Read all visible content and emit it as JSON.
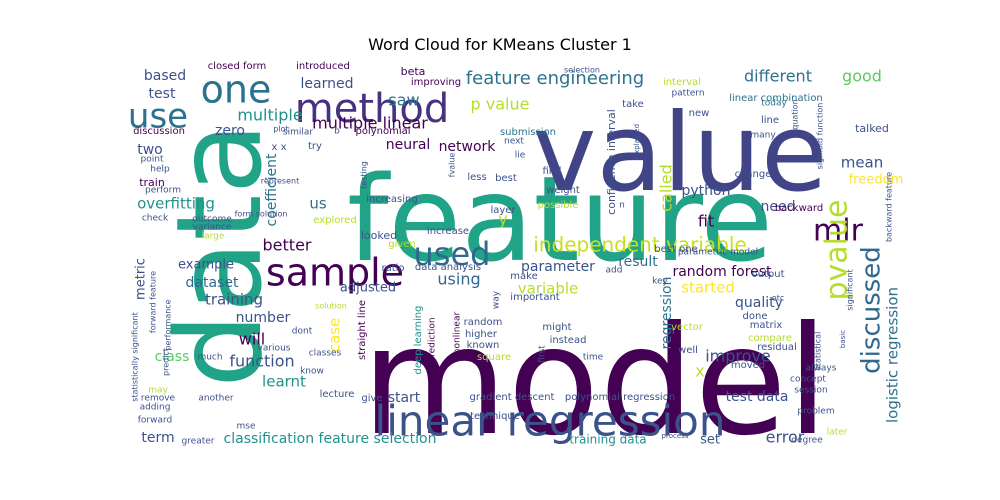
{
  "chart_data": {
    "type": "wordcloud",
    "title": "Word Cloud for KMeans Cluster 1",
    "words": [
      {
        "text": "model",
        "weight": 100,
        "color": "#440154"
      },
      {
        "text": "feature",
        "weight": 95,
        "color": "#20a386"
      },
      {
        "text": "value",
        "weight": 92,
        "color": "#414487"
      },
      {
        "text": "data",
        "weight": 90,
        "color": "#20a386"
      },
      {
        "text": "linear regression",
        "weight": 40,
        "color": "#3b528b"
      },
      {
        "text": "method",
        "weight": 38,
        "color": "#46327e"
      },
      {
        "text": "sample",
        "weight": 34,
        "color": "#440154"
      },
      {
        "text": "one",
        "weight": 32,
        "color": "#2c728e"
      },
      {
        "text": "use",
        "weight": 30,
        "color": "#2c728e"
      },
      {
        "text": "used",
        "weight": 28,
        "color": "#31688e"
      },
      {
        "text": "mlr",
        "weight": 28,
        "color": "#440154"
      },
      {
        "text": "pvalue",
        "weight": 27,
        "color": "#b5de2b"
      },
      {
        "text": "discussed",
        "weight": 24,
        "color": "#31688e"
      },
      {
        "text": "independent variable",
        "weight": 20,
        "color": "#c8e020"
      },
      {
        "text": "feature engineering",
        "weight": 18,
        "color": "#2c728e"
      },
      {
        "text": "logistic regression",
        "weight": 16,
        "color": "#2c728e"
      },
      {
        "text": "multiple linear",
        "weight": 15,
        "color": "#440154"
      },
      {
        "text": "multiple",
        "weight": 15,
        "color": "#21918c"
      },
      {
        "text": "learned",
        "weight": 14,
        "color": "#3b528b"
      },
      {
        "text": "network",
        "weight": 14,
        "color": "#440154"
      },
      {
        "text": "neural",
        "weight": 14,
        "color": "#440154"
      },
      {
        "text": "p value",
        "weight": 14,
        "color": "#b5de2b"
      },
      {
        "text": "different",
        "weight": 14,
        "color": "#2c728e"
      },
      {
        "text": "good",
        "weight": 14,
        "color": "#5ec962"
      },
      {
        "text": "based",
        "weight": 13,
        "color": "#3b528b"
      },
      {
        "text": "test",
        "weight": 13,
        "color": "#3b528b"
      },
      {
        "text": "saw",
        "weight": 13,
        "color": "#2c728e"
      },
      {
        "text": "two",
        "weight": 13,
        "color": "#3b528b"
      },
      {
        "text": "zero",
        "weight": 12,
        "color": "#3b528b"
      },
      {
        "text": "coefficient",
        "weight": 13,
        "color": "#2c728e"
      },
      {
        "text": "overfitting",
        "weight": 13,
        "color": "#21918c"
      },
      {
        "text": "better",
        "weight": 14,
        "color": "#440154"
      },
      {
        "text": "us",
        "weight": 13,
        "color": "#2c728e"
      },
      {
        "text": "called",
        "weight": 14,
        "color": "#b5de2b"
      },
      {
        "text": "python",
        "weight": 13,
        "color": "#3b528b"
      },
      {
        "text": "fit",
        "weight": 14,
        "color": "#440154"
      },
      {
        "text": "need",
        "weight": 13,
        "color": "#3b528b"
      },
      {
        "text": "mean",
        "weight": 13,
        "color": "#3b528b"
      },
      {
        "text": "freedom",
        "weight": 12,
        "color": "#fde725"
      },
      {
        "text": "regression",
        "weight": 14,
        "color": "#2c728e"
      },
      {
        "text": "result",
        "weight": 13,
        "color": "#2c728e"
      },
      {
        "text": "parameter",
        "weight": 13,
        "color": "#3b528b"
      },
      {
        "text": "random forest",
        "weight": 13,
        "color": "#440154"
      },
      {
        "text": "started",
        "weight": 13,
        "color": "#fde725"
      },
      {
        "text": "variable",
        "weight": 14,
        "color": "#b5de2b"
      },
      {
        "text": "using",
        "weight": 14,
        "color": "#31688e"
      },
      {
        "text": "dataset",
        "weight": 13,
        "color": "#31688e"
      },
      {
        "text": "example",
        "weight": 12,
        "color": "#3b528b"
      },
      {
        "text": "metric",
        "weight": 12,
        "color": "#3b528b"
      },
      {
        "text": "training",
        "weight": 14,
        "color": "#3b528b"
      },
      {
        "text": "number",
        "weight": 13,
        "color": "#3b528b"
      },
      {
        "text": "will",
        "weight": 14,
        "color": "#440154"
      },
      {
        "text": "case",
        "weight": 13,
        "color": "#fde725"
      },
      {
        "text": "adjusted",
        "weight": 12,
        "color": "#3b528b"
      },
      {
        "text": "quality",
        "weight": 13,
        "color": "#3b528b"
      },
      {
        "text": "improve",
        "weight": 14,
        "color": "#3b528b"
      },
      {
        "text": "class",
        "weight": 13,
        "color": "#5ec962"
      },
      {
        "text": "function",
        "weight": 14,
        "color": "#3b528b"
      },
      {
        "text": "learnt",
        "weight": 13,
        "color": "#21918c"
      },
      {
        "text": "start",
        "weight": 12,
        "color": "#3b528b"
      },
      {
        "text": "test data",
        "weight": 13,
        "color": "#3b528b"
      },
      {
        "text": "error",
        "weight": 14,
        "color": "#3b528b"
      },
      {
        "text": "set",
        "weight": 12,
        "color": "#3b528b"
      },
      {
        "text": "term",
        "weight": 13,
        "color": "#3b528b"
      },
      {
        "text": "classification feature selection",
        "weight": 13,
        "color": "#21918c"
      },
      {
        "text": "training data",
        "weight": 11,
        "color": "#21918c"
      },
      {
        "text": "x",
        "weight": 14,
        "color": "#b5de2b"
      },
      {
        "text": "y",
        "weight": 14,
        "color": "#b5de2b"
      },
      {
        "text": "train",
        "weight": 10,
        "color": "#440154"
      },
      {
        "text": "discussion",
        "weight": 8,
        "color": "#440154"
      },
      {
        "text": "introduced",
        "weight": 8,
        "color": "#440154"
      },
      {
        "text": "closed form",
        "weight": 8,
        "color": "#440154"
      },
      {
        "text": "improving",
        "weight": 8,
        "color": "#440154"
      },
      {
        "text": "beta",
        "weight": 9,
        "color": "#440154"
      },
      {
        "text": "interval",
        "weight": 8,
        "color": "#b5de2b"
      },
      {
        "text": "take",
        "weight": 8,
        "color": "#3b528b"
      },
      {
        "text": "pattern",
        "weight": 7,
        "color": "#3b528b"
      },
      {
        "text": "linear combination",
        "weight": 8,
        "color": "#2c728e"
      },
      {
        "text": "today",
        "weight": 8,
        "color": "#2c728e"
      },
      {
        "text": "new",
        "weight": 8,
        "color": "#3b528b"
      },
      {
        "text": "line",
        "weight": 8,
        "color": "#3b528b"
      },
      {
        "text": "many",
        "weight": 8,
        "color": "#3b528b"
      },
      {
        "text": "talked",
        "weight": 9,
        "color": "#3b528b"
      },
      {
        "text": "confidence interval",
        "weight": 9,
        "color": "#3b528b"
      },
      {
        "text": "submission",
        "weight": 8,
        "color": "#2c728e"
      },
      {
        "text": "polynomial",
        "weight": 8,
        "color": "#440154"
      },
      {
        "text": "similar",
        "weight": 8,
        "color": "#3b528b"
      },
      {
        "text": "plot",
        "weight": 7,
        "color": "#3b528b"
      },
      {
        "text": "point",
        "weight": 8,
        "color": "#3b528b"
      },
      {
        "text": "help",
        "weight": 8,
        "color": "#3b528b"
      },
      {
        "text": "perform",
        "weight": 8,
        "color": "#3b528b"
      },
      {
        "text": "check",
        "weight": 8,
        "color": "#3b528b"
      },
      {
        "text": "outcome",
        "weight": 8,
        "color": "#3b528b"
      },
      {
        "text": "variance",
        "weight": 8,
        "color": "#3b528b"
      },
      {
        "text": "large",
        "weight": 8,
        "color": "#b5de2b"
      },
      {
        "text": "testing",
        "weight": 7,
        "color": "#3b528b"
      },
      {
        "text": "fvalue",
        "weight": 7,
        "color": "#3b528b"
      },
      {
        "text": "less",
        "weight": 8,
        "color": "#3b528b"
      },
      {
        "text": "best",
        "weight": 8,
        "color": "#3b528b"
      },
      {
        "text": "find",
        "weight": 8,
        "color": "#3b528b"
      },
      {
        "text": "weight",
        "weight": 8,
        "color": "#3b528b"
      },
      {
        "text": "possible",
        "weight": 8,
        "color": "#b5de2b"
      },
      {
        "text": "change",
        "weight": 8,
        "color": "#3b528b"
      },
      {
        "text": "backward",
        "weight": 8,
        "color": "#440154"
      },
      {
        "text": "increasing",
        "weight": 8,
        "color": "#3b528b"
      },
      {
        "text": "layer",
        "weight": 8,
        "color": "#3b528b"
      },
      {
        "text": "explored",
        "weight": 8,
        "color": "#b5de2b"
      },
      {
        "text": "looked",
        "weight": 9,
        "color": "#3b528b"
      },
      {
        "text": "increase",
        "weight": 8,
        "color": "#3b528b"
      },
      {
        "text": "given",
        "weight": 8,
        "color": "#b5de2b"
      },
      {
        "text": "best one",
        "weight": 8,
        "color": "#3b528b"
      },
      {
        "text": "parametric model",
        "weight": 7,
        "color": "#3b528b"
      },
      {
        "text": "output",
        "weight": 8,
        "color": "#3b528b"
      },
      {
        "text": "key",
        "weight": 7,
        "color": "#3b528b"
      },
      {
        "text": "make",
        "weight": 8,
        "color": "#3b528b"
      },
      {
        "text": "add",
        "weight": 7,
        "color": "#3b528b"
      },
      {
        "text": "important",
        "weight": 8,
        "color": "#3b528b"
      },
      {
        "text": "ratio",
        "weight": 8,
        "color": "#3b528b"
      },
      {
        "text": "data analysis",
        "weight": 8,
        "color": "#3b528b"
      },
      {
        "text": "random",
        "weight": 8,
        "color": "#3b528b"
      },
      {
        "text": "higher",
        "weight": 8,
        "color": "#3b528b"
      },
      {
        "text": "known",
        "weight": 8,
        "color": "#3b528b"
      },
      {
        "text": "square",
        "weight": 8,
        "color": "#b5de2b"
      },
      {
        "text": "nonlinear",
        "weight": 8,
        "color": "#440154"
      },
      {
        "text": "prediction",
        "weight": 8,
        "color": "#440154"
      },
      {
        "text": "deep learning",
        "weight": 8,
        "color": "#21918c"
      },
      {
        "text": "might",
        "weight": 8,
        "color": "#3b528b"
      },
      {
        "text": "instead",
        "weight": 8,
        "color": "#3b528b"
      },
      {
        "text": "time",
        "weight": 8,
        "color": "#3b528b"
      },
      {
        "text": "done",
        "weight": 8,
        "color": "#3b528b"
      },
      {
        "text": "matrix",
        "weight": 8,
        "color": "#3b528b"
      },
      {
        "text": "compare",
        "weight": 8,
        "color": "#b5de2b"
      },
      {
        "text": "residual",
        "weight": 8,
        "color": "#3b528b"
      },
      {
        "text": "vector",
        "weight": 8,
        "color": "#b5de2b"
      },
      {
        "text": "well",
        "weight": 8,
        "color": "#3b528b"
      },
      {
        "text": "moved",
        "weight": 8,
        "color": "#3b528b"
      },
      {
        "text": "always",
        "weight": 8,
        "color": "#3b528b"
      },
      {
        "text": "concept",
        "weight": 8,
        "color": "#3b528b"
      },
      {
        "text": "session",
        "weight": 8,
        "color": "#3b528b"
      },
      {
        "text": "problem",
        "weight": 8,
        "color": "#3b528b"
      },
      {
        "text": "degree",
        "weight": 8,
        "color": "#3b528b"
      },
      {
        "text": "later",
        "weight": 8,
        "color": "#b5de2b"
      },
      {
        "text": "gradient descent",
        "weight": 8,
        "color": "#3b528b"
      },
      {
        "text": "polynomial regression",
        "weight": 8,
        "color": "#3b528b"
      },
      {
        "text": "process",
        "weight": 6,
        "color": "#3b528b"
      },
      {
        "text": "technique",
        "weight": 8,
        "color": "#3b528b"
      },
      {
        "text": "lecture",
        "weight": 8,
        "color": "#3b528b"
      },
      {
        "text": "give",
        "weight": 8,
        "color": "#3b528b"
      },
      {
        "text": "know",
        "weight": 8,
        "color": "#3b528b"
      },
      {
        "text": "straight line",
        "weight": 8,
        "color": "#440154"
      },
      {
        "text": "classes",
        "weight": 8,
        "color": "#3b528b"
      },
      {
        "text": "dont",
        "weight": 8,
        "color": "#3b528b"
      },
      {
        "text": "various",
        "weight": 8,
        "color": "#3b528b"
      },
      {
        "text": "much",
        "weight": 8,
        "color": "#3b528b"
      },
      {
        "text": "may",
        "weight": 8,
        "color": "#b5de2b"
      },
      {
        "text": "adding",
        "weight": 8,
        "color": "#3b528b"
      },
      {
        "text": "remove",
        "weight": 8,
        "color": "#3b528b"
      },
      {
        "text": "forward",
        "weight": 8,
        "color": "#3b528b"
      },
      {
        "text": "another",
        "weight": 8,
        "color": "#3b528b"
      },
      {
        "text": "greater",
        "weight": 8,
        "color": "#3b528b"
      },
      {
        "text": "mse",
        "weight": 8,
        "color": "#3b528b"
      },
      {
        "text": "statistically significant",
        "weight": 7,
        "color": "#3b528b"
      },
      {
        "text": "forward feature",
        "weight": 7,
        "color": "#3b528b"
      },
      {
        "text": "performance",
        "weight": 7,
        "color": "#3b528b"
      },
      {
        "text": "predict",
        "weight": 7,
        "color": "#3b528b"
      },
      {
        "text": "sigmoid function",
        "weight": 7,
        "color": "#3b528b"
      },
      {
        "text": "backward feature",
        "weight": 7,
        "color": "#3b528b"
      },
      {
        "text": "significant",
        "weight": 7,
        "color": "#3b528b"
      },
      {
        "text": "statistical",
        "weight": 7,
        "color": "#3b528b"
      },
      {
        "text": "equation",
        "weight": 7,
        "color": "#3b528b"
      },
      {
        "text": "explained",
        "weight": 6,
        "color": "#3b528b"
      },
      {
        "text": "form solution",
        "weight": 7,
        "color": "#3b528b"
      },
      {
        "text": "represent",
        "weight": 7,
        "color": "#3b528b"
      },
      {
        "text": "solution",
        "weight": 7,
        "color": "#b5de2b"
      },
      {
        "text": "try",
        "weight": 8,
        "color": "#3b528b"
      },
      {
        "text": "selection",
        "weight": 7,
        "color": "#3b528b"
      },
      {
        "text": "next",
        "weight": 7,
        "color": "#3b528b"
      },
      {
        "text": "lie",
        "weight": 7,
        "color": "#3b528b"
      },
      {
        "text": "way",
        "weight": 7,
        "color": "#3b528b"
      },
      {
        "text": "first",
        "weight": 7,
        "color": "#3b528b"
      },
      {
        "text": "etc",
        "weight": 7,
        "color": "#3b528b"
      },
      {
        "text": "basic",
        "weight": 6,
        "color": "#3b528b"
      },
      {
        "text": "x x",
        "weight": 8,
        "color": "#3b528b"
      },
      {
        "text": "n",
        "weight": 7,
        "color": "#3b528b"
      },
      {
        "text": "b",
        "weight": 7,
        "color": "#3b528b"
      }
    ]
  }
}
